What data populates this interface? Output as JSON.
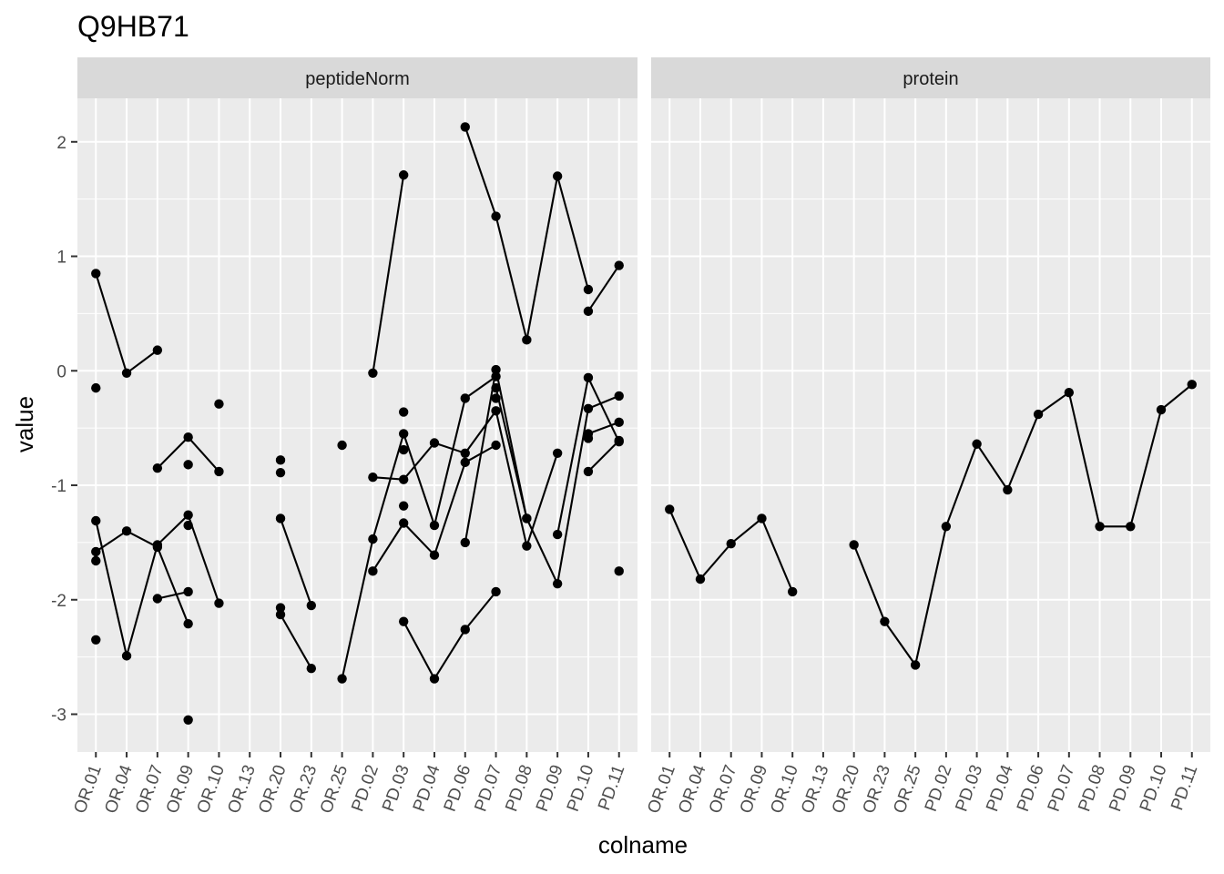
{
  "title": "Q9HB71",
  "chart_data": {
    "type": "line",
    "title": "Q9HB71",
    "xlabel": "colname",
    "ylabel": "value",
    "ylim": [
      -3.33,
      2.38
    ],
    "yticks": [
      2,
      1,
      0,
      -1,
      -2,
      -3
    ],
    "ytick_labels": [
      "2",
      "1",
      "0",
      "-1",
      "-2",
      "-3"
    ],
    "categories": [
      "OR.01",
      "OR.04",
      "OR.07",
      "OR.09",
      "OR.10",
      "OR.13",
      "OR.20",
      "OR.23",
      "OR.25",
      "PD.02",
      "PD.03",
      "PD.04",
      "PD.06",
      "PD.07",
      "PD.08",
      "PD.09",
      "PD.10",
      "PD.11"
    ],
    "panels": [
      {
        "strip": "peptideNorm",
        "lines": [
          [
            [
              0,
              0.85
            ],
            [
              1,
              -0.02
            ],
            [
              2,
              0.18
            ]
          ],
          [
            [
              0,
              -1.31
            ],
            [
              1,
              -2.49
            ],
            [
              2,
              -1.52
            ],
            [
              3,
              -1.26
            ],
            [
              4,
              -2.03
            ]
          ],
          [
            [
              0,
              -1.58
            ],
            [
              1,
              -1.4
            ],
            [
              2,
              -1.54
            ],
            [
              3,
              -2.21
            ]
          ],
          [
            [
              2,
              -0.85
            ],
            [
              3,
              -0.58
            ],
            [
              4,
              -0.88
            ]
          ],
          [
            [
              2,
              -1.99
            ],
            [
              3,
              -1.93
            ]
          ],
          [
            [
              6,
              -1.29
            ],
            [
              7,
              -2.05
            ]
          ],
          [
            [
              6,
              -2.13
            ],
            [
              7,
              -2.6
            ]
          ],
          [
            [
              8,
              -0.65
            ]
          ],
          [
            [
              9,
              -0.02
            ],
            [
              10,
              1.71
            ]
          ],
          [
            [
              12,
              2.13
            ],
            [
              13,
              1.35
            ],
            [
              14,
              0.27
            ],
            [
              15,
              1.7
            ],
            [
              16,
              0.71
            ]
          ],
          [
            [
              16,
              0.52
            ],
            [
              17,
              0.92
            ]
          ],
          [
            [
              8,
              -2.69
            ],
            [
              9,
              -1.47
            ],
            [
              10,
              -0.55
            ],
            [
              11,
              -1.35
            ],
            [
              12,
              -0.24
            ],
            [
              13,
              -0.05
            ]
          ],
          [
            [
              9,
              -1.75
            ],
            [
              10,
              -1.33
            ],
            [
              11,
              -1.61
            ],
            [
              12,
              -0.8
            ],
            [
              13,
              -0.65
            ]
          ],
          [
            [
              9,
              -0.93
            ],
            [
              10,
              -0.95
            ],
            [
              11,
              -0.63
            ],
            [
              12,
              -0.72
            ],
            [
              13,
              -0.35
            ],
            [
              14,
              -1.53
            ],
            [
              15,
              -0.72
            ]
          ],
          [
            [
              10,
              -2.19
            ],
            [
              11,
              -2.69
            ],
            [
              12,
              -2.26
            ],
            [
              13,
              -1.93
            ]
          ],
          [
            [
              12,
              -1.5
            ],
            [
              13,
              0.01
            ],
            [
              14,
              -1.29
            ],
            [
              15,
              -1.86
            ],
            [
              16,
              -0.33
            ],
            [
              17,
              -0.22
            ]
          ],
          [
            [
              13,
              -0.15
            ],
            [
              14,
              -1.29
            ]
          ],
          [
            [
              15,
              -1.43
            ],
            [
              16,
              -0.06
            ],
            [
              17,
              -0.62
            ]
          ],
          [
            [
              16,
              -0.55
            ],
            [
              17,
              -0.45
            ]
          ],
          [
            [
              16,
              -0.88
            ],
            [
              17,
              -0.61
            ]
          ]
        ],
        "points": [
          [
            0,
            -0.15
          ],
          [
            0,
            -1.66
          ],
          [
            0,
            -2.35
          ],
          [
            3,
            -0.82
          ],
          [
            3,
            -1.35
          ],
          [
            3,
            -3.05
          ],
          [
            4,
            -0.29
          ],
          [
            6,
            -0.78
          ],
          [
            6,
            -0.89
          ],
          [
            6,
            -2.07
          ],
          [
            10,
            -0.36
          ],
          [
            10,
            -0.69
          ],
          [
            10,
            -1.18
          ],
          [
            13,
            -0.24
          ],
          [
            16,
            -0.59
          ],
          [
            17,
            -1.75
          ]
        ]
      },
      {
        "strip": "protein",
        "lines": [
          [
            [
              0,
              -1.21
            ],
            [
              1,
              -1.82
            ],
            [
              2,
              -1.51
            ],
            [
              3,
              -1.29
            ],
            [
              4,
              -1.93
            ]
          ],
          [
            [
              6,
              -1.52
            ],
            [
              7,
              -2.19
            ],
            [
              8,
              -2.57
            ],
            [
              9,
              -1.36
            ],
            [
              10,
              -0.64
            ],
            [
              11,
              -1.04
            ],
            [
              12,
              -0.38
            ],
            [
              13,
              -0.19
            ],
            [
              14,
              -1.36
            ],
            [
              15,
              -1.36
            ],
            [
              16,
              -0.34
            ],
            [
              17,
              -0.12
            ]
          ]
        ],
        "points": []
      }
    ]
  }
}
